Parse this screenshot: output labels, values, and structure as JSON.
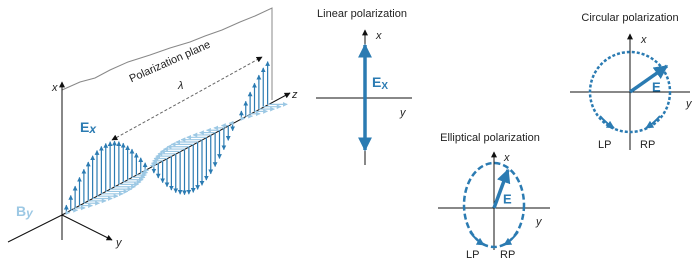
{
  "wave": {
    "plane_label": "Polarization plane",
    "wavelength": "λ",
    "x_axis": "x",
    "y_axis": "y",
    "z_axis": "z",
    "e_label": "E",
    "e_sub": "x",
    "b_label": "B",
    "b_sub": "y"
  },
  "linear": {
    "title": "Linear polarization",
    "x_axis": "x",
    "y_axis": "y",
    "e_label": "E",
    "e_sub": "X"
  },
  "circular": {
    "title": "Circular polarization",
    "x_axis": "x",
    "y_axis": "y",
    "e_label": "E",
    "left": "LP",
    "right": "RP"
  },
  "elliptical": {
    "title": "Elliptical polarization",
    "x_axis": "x",
    "y_axis": "y",
    "e_label": "E",
    "left": "LP",
    "right": "RP"
  }
}
